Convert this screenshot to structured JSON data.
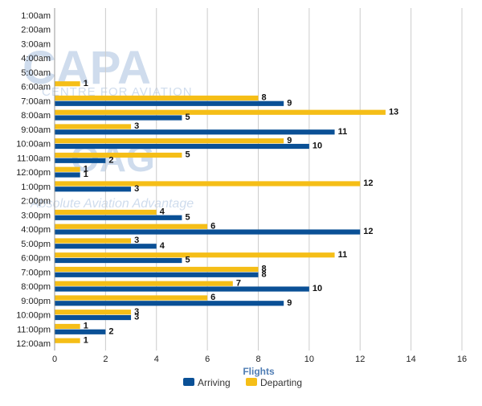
{
  "watermarks": {
    "capa_logo": "CAPA",
    "capa_tagline": "CENTRE FOR AVIATION",
    "oag_logo": "OAG",
    "oag_tagline": "Absolute Aviation Advantage"
  },
  "colors": {
    "arriving": "#0a5096",
    "departing": "#f5be17",
    "grid": "#cccccc",
    "axis_title": "#4f7db4",
    "watermark": "#c7d7ea"
  },
  "chart_data": {
    "type": "bar",
    "orientation": "horizontal",
    "categories": [
      "1:00am",
      "2:00am",
      "3:00am",
      "4:00am",
      "5:00am",
      "6:00am",
      "7:00am",
      "8:00am",
      "9:00am",
      "10:00am",
      "11:00am",
      "12:00pm",
      "1:00pm",
      "2:00pm",
      "3:00pm",
      "4:00pm",
      "5:00pm",
      "6:00pm",
      "7:00pm",
      "8:00pm",
      "9:00pm",
      "10:00pm",
      "11:00pm",
      "12:00am"
    ],
    "series": [
      {
        "name": "Departing",
        "values": [
          0,
          0,
          0,
          0,
          0,
          1,
          8,
          13,
          3,
          9,
          5,
          1,
          12,
          0,
          4,
          6,
          3,
          11,
          8,
          7,
          6,
          3,
          1,
          1
        ]
      },
      {
        "name": "Arriving",
        "values": [
          0,
          0,
          0,
          0,
          0,
          0,
          9,
          5,
          11,
          10,
          2,
          1,
          3,
          0,
          5,
          12,
          4,
          5,
          8,
          10,
          9,
          3,
          2,
          0
        ]
      }
    ],
    "xlabel": "Flights",
    "ylabel": "",
    "xlim": [
      0,
      16
    ],
    "xticks": [
      0,
      2,
      4,
      6,
      8,
      10,
      12,
      14,
      16
    ],
    "grid": true,
    "legend": {
      "position": "bottom-center",
      "entries": [
        "Arriving",
        "Departing"
      ]
    }
  }
}
